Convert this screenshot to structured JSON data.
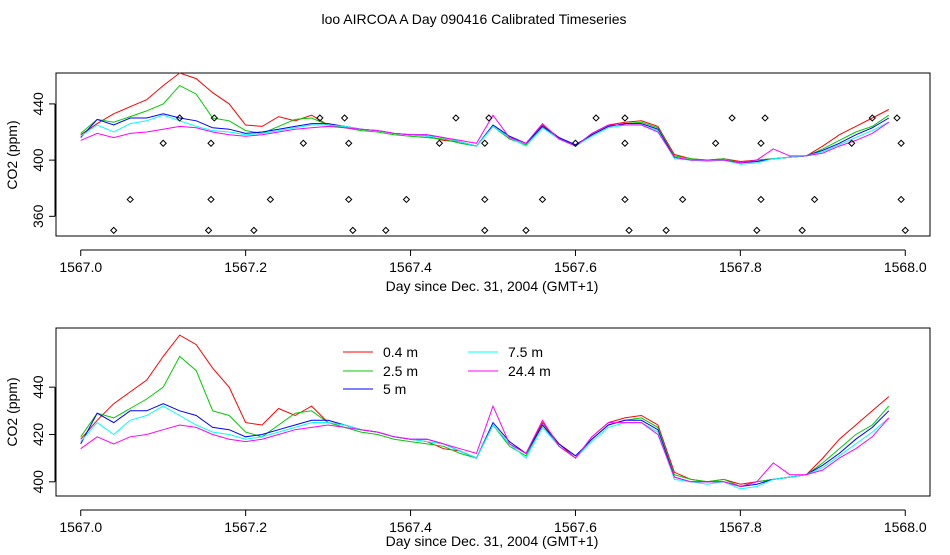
{
  "page": {
    "title": "loo AIRCOA A  Day 090416  Calibrated Timeseries"
  },
  "colors": {
    "h0_4": "#ff0000",
    "h2_5": "#00cc00",
    "h5": "#0000ff",
    "h7_5": "#00ffff",
    "h24_4": "#ff00ff",
    "points": "#000000"
  },
  "chart_data": [
    {
      "type": "scatter",
      "title": "loo AIRCOA A  Day 090416  Calibrated Timeseries",
      "xlabel": "Day since Dec. 31, 2004 (GMT+1)",
      "ylabel": "CO2 (ppm)",
      "xlim": [
        1566.97,
        1568.03
      ],
      "ylim": [
        346,
        462
      ],
      "xticks": [
        "1567.0",
        "1567.2",
        "1567.4",
        "1567.6",
        "1567.8",
        "1568.0"
      ],
      "xtick_values": [
        1567.0,
        1567.2,
        1567.4,
        1567.6,
        1567.8,
        1568.0
      ],
      "yticks": [
        "360",
        "400",
        "440"
      ],
      "ytick_values": [
        360,
        400,
        440
      ],
      "lines_note": "same five series as panel 2, overlaid",
      "calibration_points": [
        [
          1567.04,
          350
        ],
        [
          1567.06,
          372
        ],
        [
          1567.1,
          412
        ],
        [
          1567.12,
          430
        ],
        [
          1567.155,
          350
        ],
        [
          1567.158,
          372
        ],
        [
          1567.158,
          412
        ],
        [
          1567.162,
          430
        ],
        [
          1567.21,
          350
        ],
        [
          1567.23,
          372
        ],
        [
          1567.27,
          412
        ],
        [
          1567.29,
          430
        ],
        [
          1567.32,
          430
        ],
        [
          1567.325,
          412
        ],
        [
          1567.325,
          372
        ],
        [
          1567.33,
          350
        ],
        [
          1567.37,
          350
        ],
        [
          1567.395,
          372
        ],
        [
          1567.435,
          412
        ],
        [
          1567.455,
          430
        ],
        [
          1567.49,
          350
        ],
        [
          1567.49,
          412
        ],
        [
          1567.49,
          372
        ],
        [
          1567.495,
          430
        ],
        [
          1567.54,
          350
        ],
        [
          1567.56,
          372
        ],
        [
          1567.6,
          412
        ],
        [
          1567.625,
          430
        ],
        [
          1567.66,
          430
        ],
        [
          1567.66,
          412
        ],
        [
          1567.66,
          372
        ],
        [
          1567.665,
          350
        ],
        [
          1567.71,
          350
        ],
        [
          1567.73,
          372
        ],
        [
          1567.77,
          412
        ],
        [
          1567.79,
          430
        ],
        [
          1567.82,
          350
        ],
        [
          1567.825,
          372
        ],
        [
          1567.825,
          412
        ],
        [
          1567.83,
          430
        ],
        [
          1567.875,
          350
        ],
        [
          1567.89,
          372
        ],
        [
          1567.935,
          412
        ],
        [
          1567.96,
          430
        ],
        [
          1567.99,
          430
        ],
        [
          1567.995,
          412
        ],
        [
          1567.995,
          372
        ],
        [
          1568.0,
          350
        ]
      ]
    },
    {
      "type": "line",
      "title": "",
      "xlabel": "Day since Dec. 31, 2004 (GMT+1)",
      "ylabel": "CO2 (ppm)",
      "xlim": [
        1566.97,
        1568.03
      ],
      "ylim": [
        394,
        465
      ],
      "xticks": [
        "1567.0",
        "1567.2",
        "1567.4",
        "1567.6",
        "1567.8",
        "1568.0"
      ],
      "xtick_values": [
        1567.0,
        1567.2,
        1567.4,
        1567.6,
        1567.8,
        1568.0
      ],
      "yticks": [
        "400",
        "420",
        "440"
      ],
      "ytick_values": [
        400,
        420,
        440
      ],
      "legend_position": "top-center",
      "x": [
        1567.0,
        1567.02,
        1567.04,
        1567.06,
        1567.08,
        1567.1,
        1567.12,
        1567.14,
        1567.16,
        1567.18,
        1567.2,
        1567.22,
        1567.24,
        1567.26,
        1567.28,
        1567.3,
        1567.32,
        1567.34,
        1567.36,
        1567.38,
        1567.4,
        1567.42,
        1567.44,
        1567.46,
        1567.48,
        1567.5,
        1567.52,
        1567.54,
        1567.56,
        1567.58,
        1567.6,
        1567.62,
        1567.64,
        1567.66,
        1567.68,
        1567.7,
        1567.72,
        1567.74,
        1567.76,
        1567.78,
        1567.8,
        1567.82,
        1567.84,
        1567.86,
        1567.88,
        1567.9,
        1567.92,
        1567.94,
        1567.96,
        1567.98
      ],
      "series": [
        {
          "name": "0.4 m",
          "color": "#ff0000",
          "values": [
            418,
            426,
            433,
            438,
            443,
            453,
            462,
            458,
            448,
            440,
            425,
            424,
            431,
            428,
            432,
            425,
            424,
            422,
            421,
            419,
            418,
            417,
            414,
            413,
            410,
            424,
            416,
            412,
            425,
            416,
            410,
            419,
            425,
            427,
            428,
            424,
            404,
            401,
            400,
            401,
            399,
            400,
            401,
            402,
            403,
            410,
            418,
            424,
            430,
            436
          ]
        },
        {
          "name": "2.5 m",
          "color": "#00cc00",
          "values": [
            419,
            429,
            427,
            431,
            435,
            440,
            453,
            447,
            430,
            428,
            421,
            419,
            424,
            429,
            430,
            425,
            423,
            421,
            420,
            418,
            417,
            416,
            415,
            412,
            410,
            424,
            415,
            411,
            424,
            415,
            410,
            418,
            424,
            426,
            427,
            423,
            403,
            401,
            400,
            401,
            398,
            400,
            401,
            402,
            403,
            408,
            414,
            420,
            424,
            432
          ]
        },
        {
          "name": "5 m",
          "color": "#0000ff",
          "values": [
            416,
            429,
            425,
            430,
            430,
            433,
            430,
            428,
            423,
            422,
            419,
            420,
            422,
            424,
            426,
            426,
            424,
            422,
            421,
            419,
            418,
            418,
            416,
            413,
            410,
            425,
            417,
            412,
            424,
            416,
            411,
            418,
            424,
            426,
            426,
            422,
            402,
            400,
            400,
            400,
            398,
            399,
            401,
            402,
            403,
            407,
            412,
            418,
            423,
            430
          ]
        },
        {
          "name": "7.5 m",
          "color": "#00ffff",
          "values": [
            417,
            425,
            420,
            426,
            428,
            432,
            428,
            424,
            421,
            420,
            418,
            419,
            421,
            423,
            425,
            425,
            424,
            422,
            421,
            419,
            418,
            417,
            416,
            413,
            410,
            424,
            416,
            410,
            423,
            415,
            410,
            417,
            423,
            425,
            425,
            421,
            401,
            400,
            399,
            400,
            397,
            398,
            401,
            402,
            403,
            406,
            411,
            416,
            421,
            427
          ]
        },
        {
          "name": "24.4 m",
          "color": "#ff00ff",
          "values": [
            414,
            419,
            416,
            419,
            420,
            422,
            424,
            423,
            420,
            418,
            417,
            418,
            420,
            422,
            423,
            424,
            423,
            422,
            421,
            419,
            418,
            418,
            416,
            414,
            412,
            432,
            416,
            412,
            426,
            415,
            410,
            419,
            425,
            425,
            425,
            420,
            402,
            400,
            400,
            400,
            398,
            400,
            408,
            403,
            403,
            405,
            410,
            414,
            419,
            427
          ]
        }
      ],
      "legend_columns": [
        [
          "0.4 m",
          "2.5 m",
          "5 m"
        ],
        [
          "7.5 m",
          "24.4 m"
        ]
      ]
    }
  ]
}
